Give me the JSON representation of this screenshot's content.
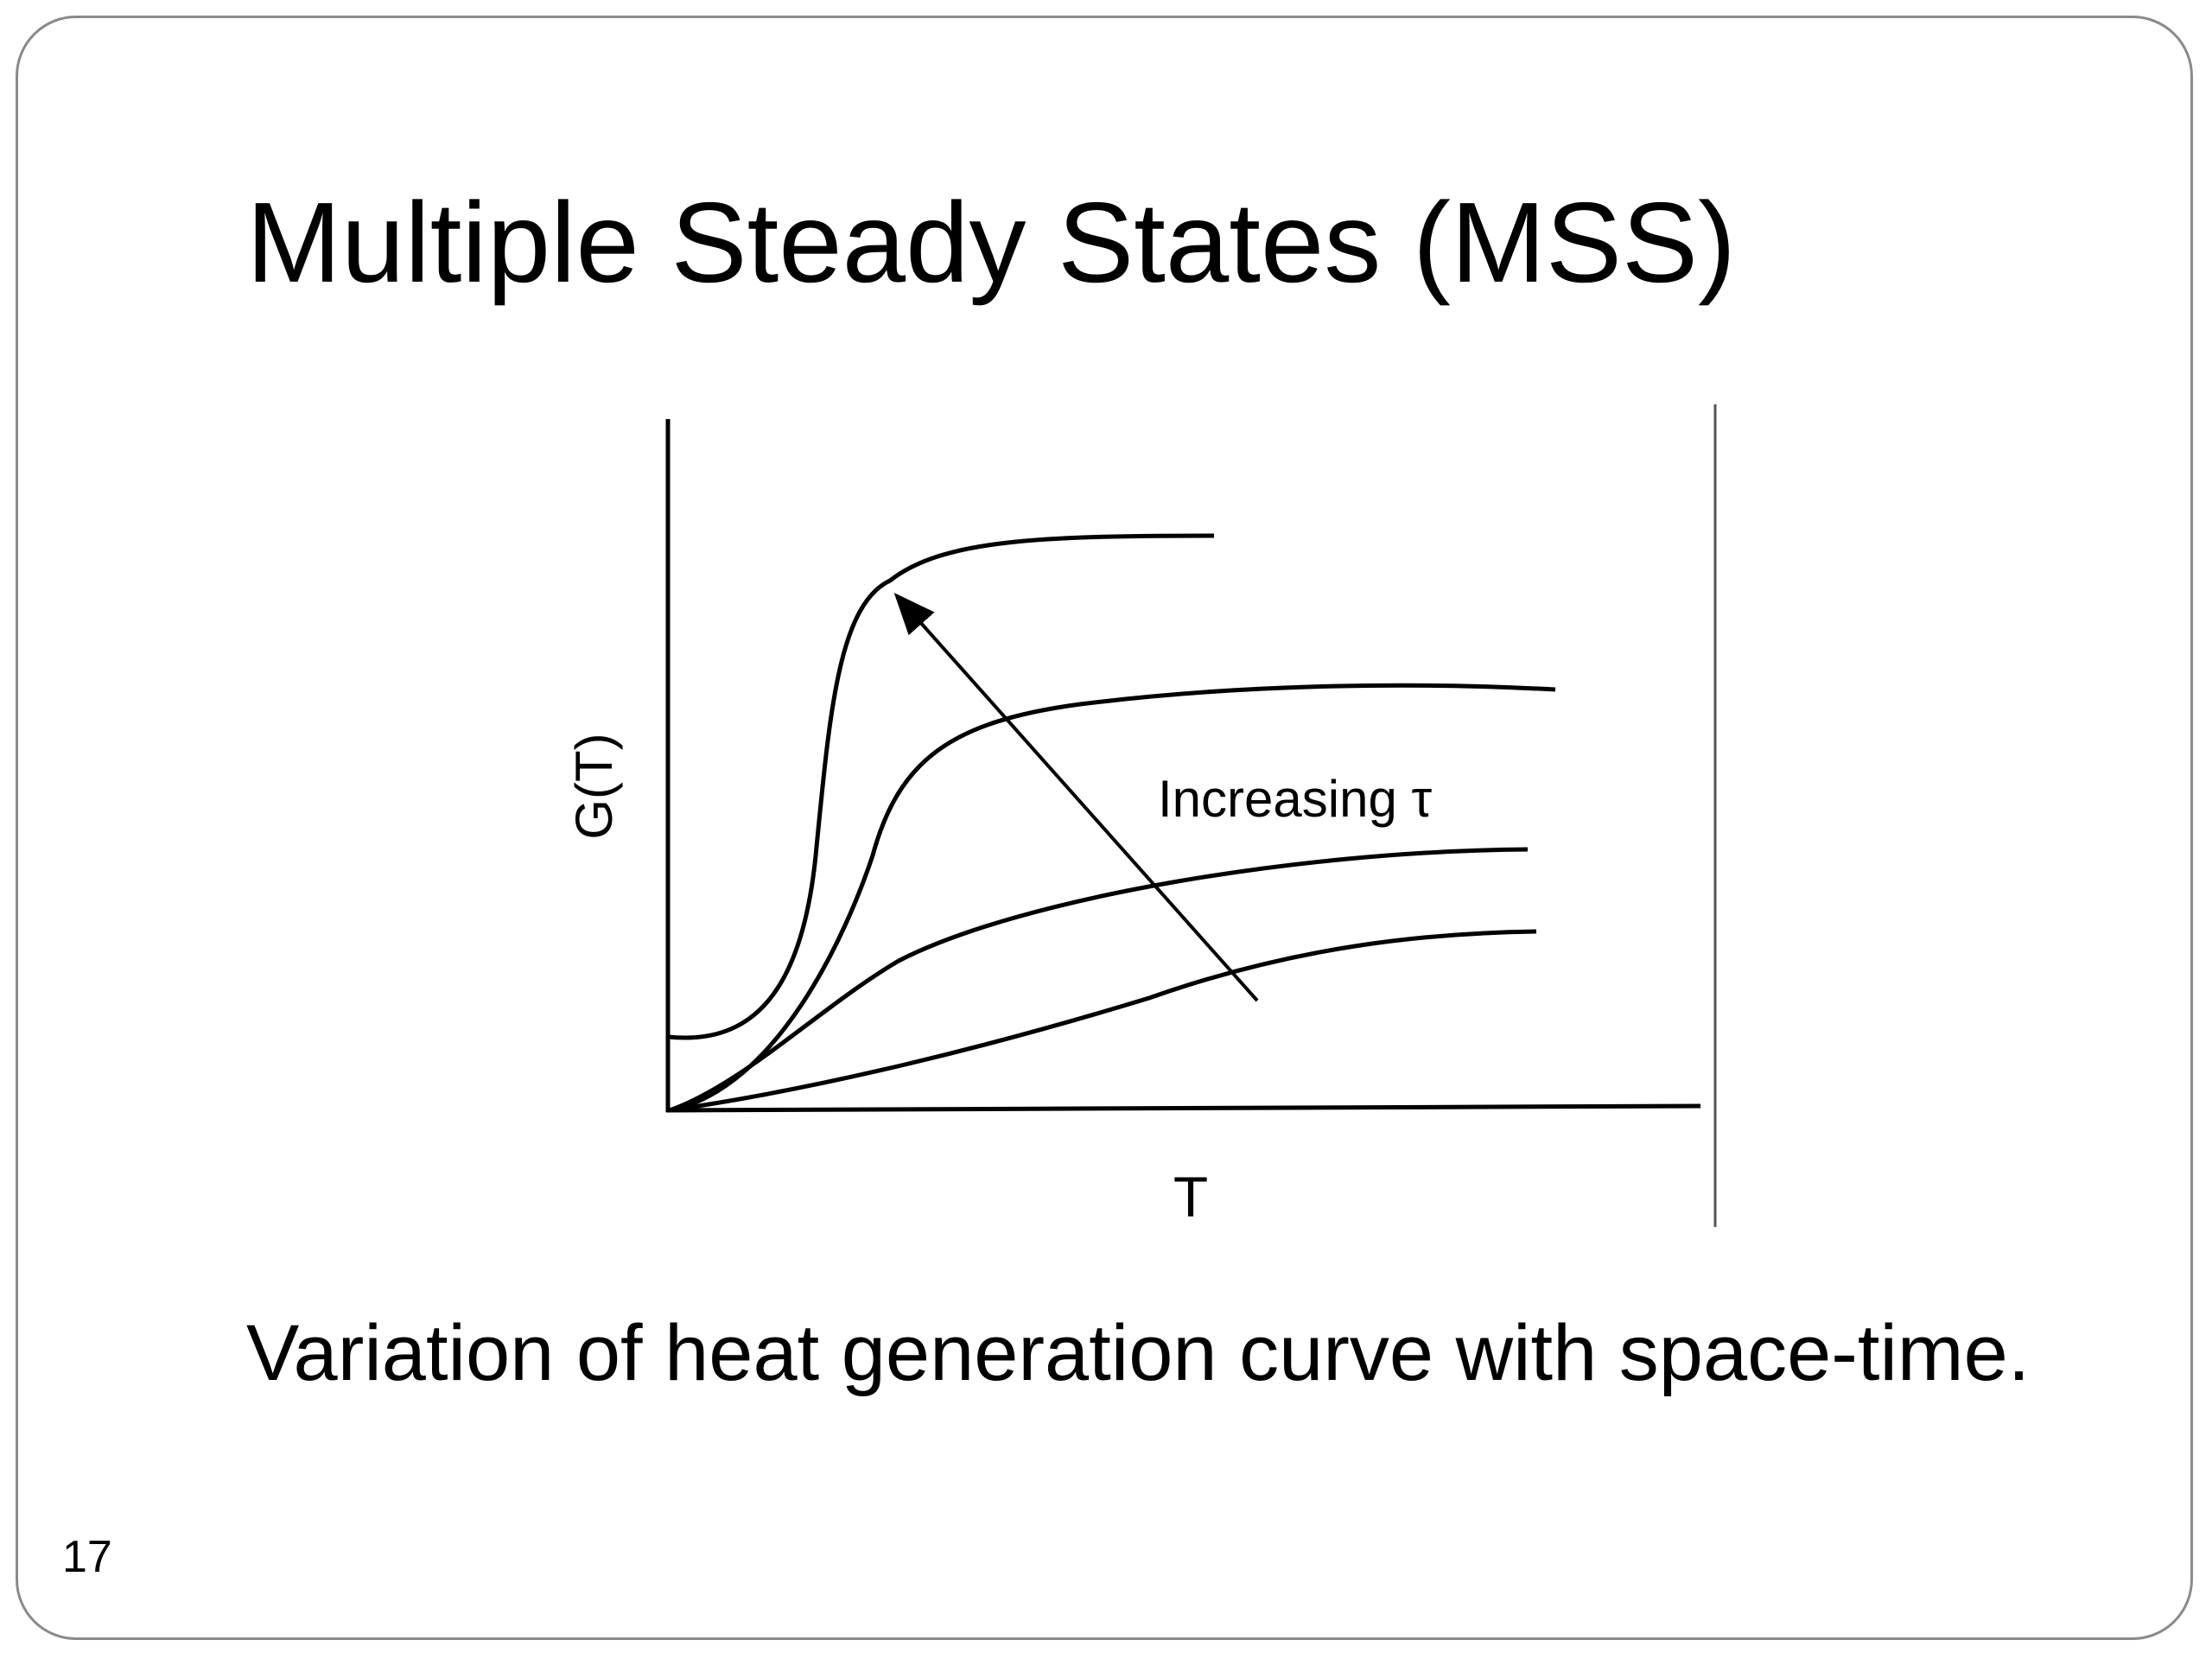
{
  "slide": {
    "title": "Multiple Steady States (MSS)",
    "caption": "Variation of heat generation curve with space-time.",
    "page_number": "17"
  },
  "diagram": {
    "y_axis_label": "G(T)",
    "x_axis_label": "T",
    "arrow_label": "Increasing τ",
    "curve_count": 4,
    "line_color": "#000000"
  }
}
